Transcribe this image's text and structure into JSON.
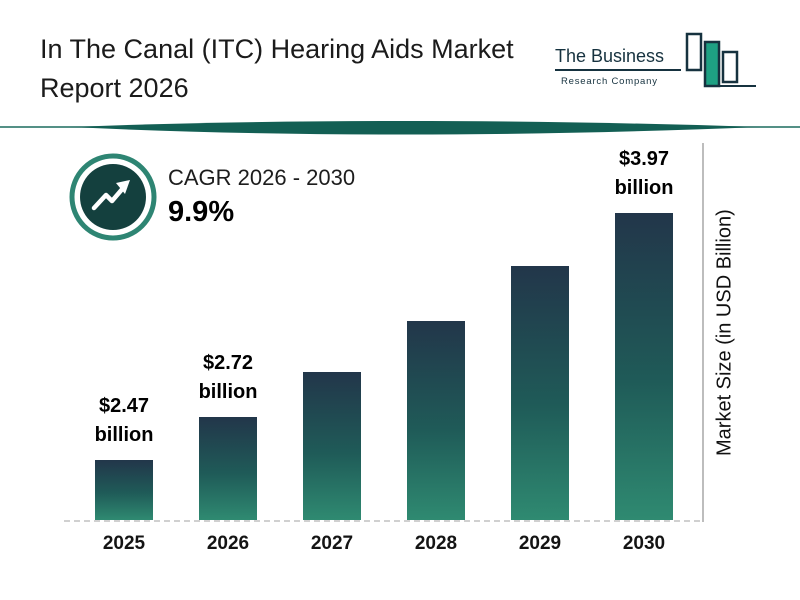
{
  "header": {
    "title_line1": "In The Canal (ITC) Hearing Aids Market",
    "title_line2": "Report 2026",
    "logo": {
      "line1": "The Business",
      "line2": "Research Company"
    }
  },
  "cagr": {
    "label": "CAGR 2026 - 2030",
    "value": "9.9%"
  },
  "ylabel": "Market Size (in USD Billion)",
  "colors": {
    "bar_gradient_top": "#22364a",
    "bar_gradient_bottom": "#2f8a71",
    "swoosh": "#135f54",
    "badge_ring": "#2e8573",
    "badge_fill": "#14403e",
    "logo_ink": "#16323f",
    "logo_bar_fill": "#1ea183"
  },
  "chart_data": {
    "type": "bar",
    "title": "In The Canal (ITC) Hearing Aids Market Report 2026",
    "categories": [
      "2025",
      "2026",
      "2027",
      "2028",
      "2029",
      "2030"
    ],
    "values": [
      2.47,
      2.72,
      2.99,
      3.29,
      3.61,
      3.97
    ],
    "unit": "USD Billion",
    "ylabel": "Market Size (in USD Billion)",
    "cagr_label": "CAGR 2026 - 2030",
    "cagr_value": "9.9%",
    "grid": false,
    "legend": "none",
    "bars": [
      {
        "year": "2025",
        "value": 2.47,
        "label_top": "$2.47",
        "label_bottom": "billion"
      },
      {
        "year": "2026",
        "value": 2.72,
        "label_top": "$2.72",
        "label_bottom": "billion"
      },
      {
        "year": "2027",
        "value": 2.99,
        "label_top": null,
        "label_bottom": null
      },
      {
        "year": "2028",
        "value": 3.29,
        "label_top": null,
        "label_bottom": null
      },
      {
        "year": "2029",
        "value": 3.61,
        "label_top": null,
        "label_bottom": null
      },
      {
        "year": "2030",
        "value": 3.97,
        "label_top": "$3.97",
        "label_bottom": "billion"
      }
    ]
  }
}
